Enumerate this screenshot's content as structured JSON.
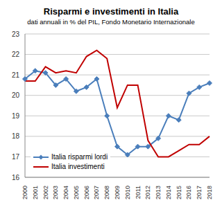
{
  "chart_data": {
    "type": "line",
    "title": "Risparmi e investimenti in Italia",
    "subtitle": "dati annuali in % del PIL, Fondo Monetario Internazionale",
    "categories": [
      "2000",
      "2001",
      "2002",
      "2003",
      "2004",
      "2005",
      "2006",
      "2007",
      "2008",
      "2009",
      "2010",
      "2011",
      "2012",
      "2013",
      "2014",
      "2015",
      "2016",
      "2017",
      "2018"
    ],
    "ylim": [
      16,
      23
    ],
    "yticks": [
      16,
      17,
      18,
      19,
      20,
      21,
      22,
      23
    ],
    "grid": true,
    "legend": "lower left",
    "series": [
      {
        "name": "Italia risparmi lordi",
        "color": "#4a7ebb",
        "marker": "diamond",
        "values": [
          20.8,
          21.2,
          21.1,
          20.5,
          20.8,
          20.2,
          20.4,
          20.8,
          19.0,
          17.5,
          17.1,
          17.5,
          17.5,
          17.9,
          19.0,
          18.8,
          20.1,
          20.4,
          20.6
        ]
      },
      {
        "name": "Italia investimenti",
        "color": "#c00000",
        "marker": "none",
        "values": [
          20.7,
          20.7,
          21.4,
          21.1,
          21.2,
          21.1,
          21.9,
          22.2,
          21.8,
          19.4,
          20.5,
          20.5,
          17.8,
          17.0,
          17.0,
          17.3,
          17.6,
          17.6,
          18.0
        ]
      }
    ]
  }
}
